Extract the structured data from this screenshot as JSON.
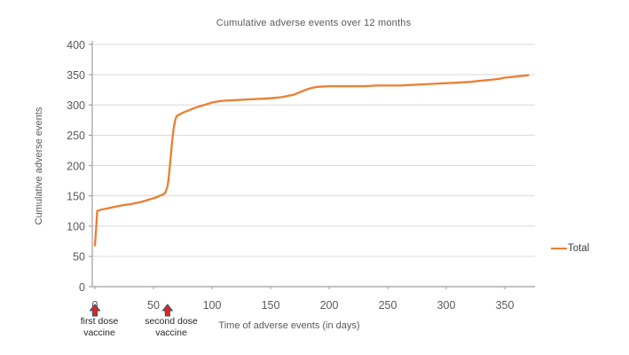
{
  "chart_data": {
    "type": "line",
    "title": "Cumulative adverse events over 12 months",
    "xlabel": "Time of adverse events (in days)",
    "ylabel": "Cumulative adverse events",
    "xlim": [
      0,
      375
    ],
    "ylim": [
      0,
      400
    ],
    "x_ticks": [
      0,
      50,
      100,
      150,
      200,
      250,
      300,
      350
    ],
    "y_ticks": [
      0,
      50,
      100,
      150,
      200,
      250,
      300,
      350,
      400
    ],
    "grid": "horizontal",
    "legend_position": "right",
    "series": [
      {
        "name": "Total",
        "color": "#ED7D31",
        "points": [
          [
            0,
            68
          ],
          [
            1,
            95
          ],
          [
            2,
            125
          ],
          [
            5,
            127
          ],
          [
            10,
            129
          ],
          [
            15,
            131
          ],
          [
            20,
            133
          ],
          [
            25,
            135
          ],
          [
            30,
            136
          ],
          [
            35,
            138
          ],
          [
            40,
            140
          ],
          [
            45,
            143
          ],
          [
            50,
            146
          ],
          [
            53,
            148
          ],
          [
            55,
            150
          ],
          [
            58,
            152
          ],
          [
            60,
            155
          ],
          [
            62,
            165
          ],
          [
            63,
            180
          ],
          [
            64,
            200
          ],
          [
            65,
            220
          ],
          [
            66,
            240
          ],
          [
            67,
            258
          ],
          [
            68,
            270
          ],
          [
            69,
            278
          ],
          [
            70,
            282
          ],
          [
            72,
            284
          ],
          [
            74,
            286
          ],
          [
            76,
            288
          ],
          [
            80,
            291
          ],
          [
            85,
            295
          ],
          [
            90,
            298
          ],
          [
            95,
            301
          ],
          [
            100,
            304
          ],
          [
            105,
            306
          ],
          [
            110,
            307
          ],
          [
            120,
            308
          ],
          [
            130,
            309
          ],
          [
            140,
            310
          ],
          [
            150,
            311
          ],
          [
            155,
            312
          ],
          [
            160,
            313
          ],
          [
            165,
            315
          ],
          [
            170,
            317
          ],
          [
            175,
            321
          ],
          [
            180,
            325
          ],
          [
            185,
            328
          ],
          [
            190,
            330
          ],
          [
            200,
            331
          ],
          [
            210,
            331
          ],
          [
            220,
            331
          ],
          [
            230,
            331
          ],
          [
            240,
            332
          ],
          [
            250,
            332
          ],
          [
            260,
            332
          ],
          [
            270,
            333
          ],
          [
            280,
            334
          ],
          [
            290,
            335
          ],
          [
            300,
            336
          ],
          [
            310,
            337
          ],
          [
            320,
            338
          ],
          [
            330,
            340
          ],
          [
            335,
            341
          ],
          [
            340,
            342
          ],
          [
            345,
            343
          ],
          [
            350,
            345
          ],
          [
            355,
            346
          ],
          [
            360,
            347
          ],
          [
            365,
            348
          ],
          [
            370,
            349
          ]
        ]
      }
    ],
    "annotations": [
      {
        "x": 0,
        "label": "first dose\nvaccine"
      },
      {
        "x": 62,
        "label": "second dose\nvaccine"
      }
    ]
  },
  "colors": {
    "line": "#ED7D31",
    "gridline": "#D9D9D9",
    "axis": "#9E9E9E",
    "tick_label": "#595959",
    "arrow_fill": "#E3251B",
    "arrow_stroke": "#1F4E79"
  },
  "legend": {
    "label": "Total"
  }
}
